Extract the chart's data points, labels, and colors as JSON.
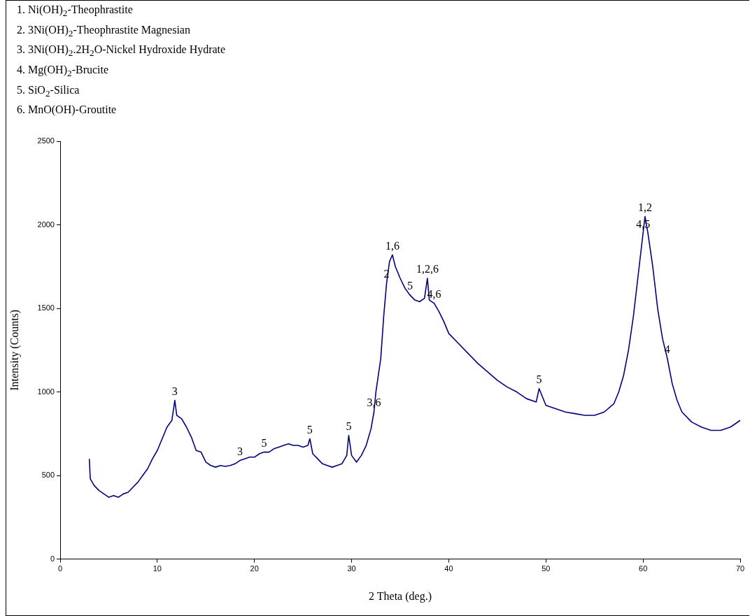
{
  "chart_data": {
    "type": "line",
    "xlabel": "2 Theta (deg.)",
    "ylabel": "Intensity (Counts)",
    "xlim": [
      0,
      70
    ],
    "xticks": [
      0,
      10,
      20,
      30,
      40,
      50,
      60,
      70
    ],
    "ylim": [
      0,
      2500
    ],
    "yticks": [
      0,
      500,
      1000,
      1500,
      2000,
      2500
    ],
    "grid": false,
    "legend": false,
    "marker": "none",
    "line_style": "solid",
    "annotations": [
      "1.  Ni(OH)$_{2}$-Theophrastite",
      "2.  3Ni(OH)$_{2}$-Theophrastite Magnesian",
      "3.  3Ni(OH)$_{2}$.2H$_{2}$O-Nickel Hydroxide Hydrate",
      "4.  Mg(OH)$_{2}$-Brucite",
      "5.  SiO$_{2}$-Silica",
      "6.  MnO(OH)-Groutite",
      {
        "text": "3",
        "x": 11.8,
        "y": 950
      },
      {
        "text": "3",
        "x": 18.5,
        "y": 590
      },
      {
        "text": "5",
        "x": 21,
        "y": 640
      },
      {
        "text": "5",
        "x": 25.7,
        "y": 720
      },
      {
        "text": "5",
        "x": 29.7,
        "y": 740
      },
      {
        "text": "3,6",
        "x": 32.3,
        "y": 880
      },
      {
        "text": "2",
        "x": 33.6,
        "y": 1650
      },
      {
        "text": "1,6",
        "x": 34.2,
        "y": 1820
      },
      {
        "text": "5",
        "x": 36,
        "y": 1580
      },
      {
        "text": "1,2,6",
        "x": 37.8,
        "y": 1680
      },
      {
        "text": "4,6",
        "x": 38.5,
        "y": 1530
      },
      {
        "text": "5",
        "x": 49.3,
        "y": 1020
      },
      {
        "text": "4,5",
        "x": 60,
        "y": 1950
      },
      {
        "text": "1,2",
        "x": 60.2,
        "y": 2050
      },
      {
        "text": "4",
        "x": 62.5,
        "y": 1200
      }
    ],
    "series": [
      {
        "color": "#000080",
        "x": [
          3,
          3.1,
          3.5,
          4,
          4.5,
          5,
          5.5,
          6,
          6.5,
          7,
          7.5,
          8,
          8.5,
          9,
          9.5,
          10,
          10.5,
          11,
          11.5,
          11.8,
          12,
          12.5,
          13,
          13.5,
          14,
          14.5,
          15,
          15.5,
          16,
          16.5,
          17,
          17.5,
          18,
          18.5,
          19,
          19.5,
          20,
          20.5,
          21,
          21.5,
          22,
          22.5,
          23,
          23.5,
          24,
          24.5,
          25,
          25.5,
          25.7,
          26,
          26.5,
          27,
          27.5,
          28,
          28.5,
          29,
          29.5,
          29.7,
          30,
          30.5,
          31,
          31.5,
          32,
          32.3,
          32.5,
          33,
          33.3,
          33.6,
          33.9,
          34.2,
          34.5,
          35,
          35.5,
          36,
          36.5,
          37,
          37.5,
          37.8,
          38,
          38.5,
          39,
          39.5,
          40,
          41,
          42,
          43,
          44,
          45,
          46,
          47,
          48,
          49,
          49.3,
          50,
          51,
          52,
          53,
          54,
          55,
          56,
          57,
          57.5,
          58,
          58.5,
          59,
          59.5,
          60,
          60.2,
          60.5,
          61,
          61.5,
          62,
          62.5,
          63,
          63.5,
          64,
          65,
          66,
          67,
          68,
          69,
          69.5,
          70
        ],
        "values": [
          600,
          480,
          440,
          410,
          390,
          370,
          380,
          370,
          390,
          400,
          430,
          460,
          500,
          540,
          600,
          650,
          720,
          790,
          830,
          950,
          860,
          840,
          790,
          730,
          650,
          640,
          580,
          560,
          550,
          560,
          555,
          560,
          570,
          590,
          600,
          610,
          610,
          630,
          640,
          640,
          660,
          670,
          680,
          690,
          680,
          680,
          670,
          680,
          720,
          630,
          600,
          570,
          560,
          550,
          560,
          570,
          620,
          740,
          620,
          580,
          620,
          680,
          780,
          880,
          1000,
          1200,
          1450,
          1650,
          1780,
          1820,
          1750,
          1680,
          1620,
          1580,
          1550,
          1540,
          1560,
          1680,
          1550,
          1530,
          1480,
          1420,
          1350,
          1290,
          1230,
          1170,
          1120,
          1070,
          1030,
          1000,
          960,
          940,
          1020,
          920,
          900,
          880,
          870,
          860,
          860,
          880,
          930,
          1000,
          1100,
          1250,
          1450,
          1700,
          1950,
          2050,
          1950,
          1750,
          1500,
          1320,
          1200,
          1050,
          950,
          880,
          820,
          790,
          770,
          770,
          790,
          810,
          830
        ]
      }
    ]
  }
}
